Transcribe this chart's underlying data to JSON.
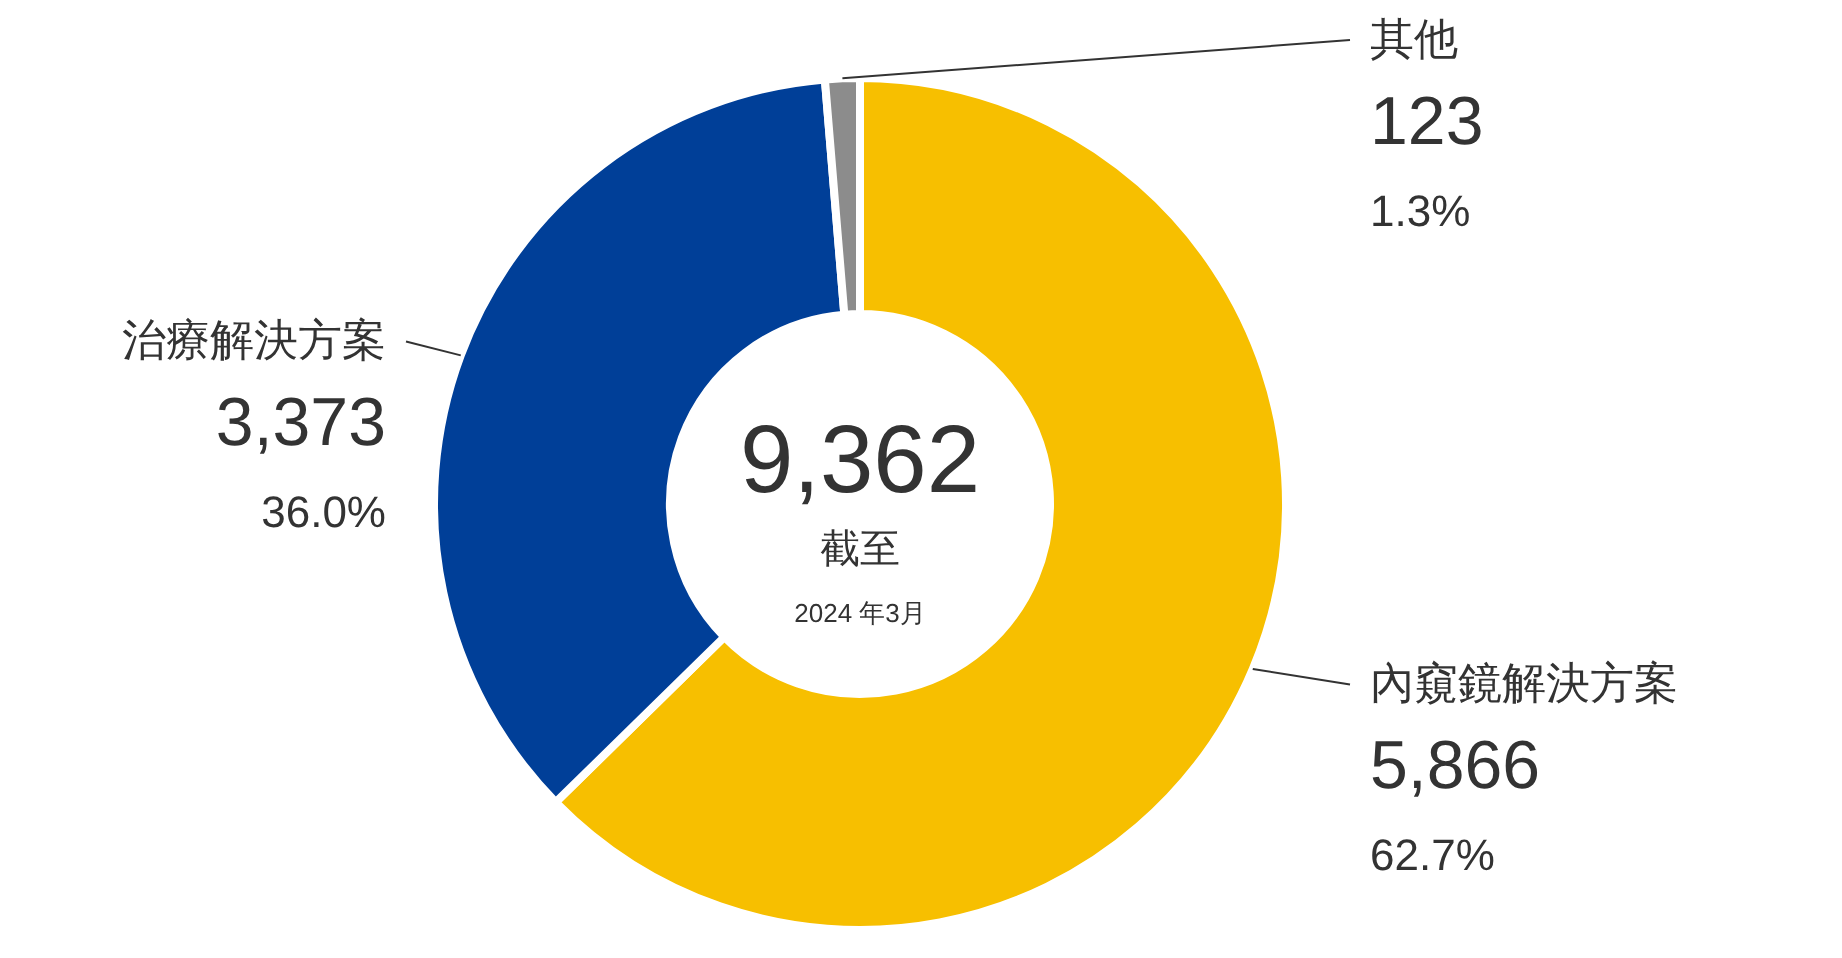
{
  "chart_data": {
    "type": "donut",
    "title": "9,362",
    "subtitle": "截至",
    "categories": [
      "內窺鏡解決方案",
      "治療解決方案",
      "其他"
    ],
    "values": [
      5866,
      3373,
      123
    ],
    "colors": [
      "#f7bf00",
      "#003f98",
      "#8c8c8c"
    ],
    "value_labels": [
      "5,866",
      "3,373",
      "123"
    ],
    "annotations": [
      "2024 年3月",
      {
        "text": "62.7%",
        "x": "內窺鏡解決方案"
      },
      {
        "text": "36.0%",
        "x": "治療解決方案"
      },
      {
        "text": "1.3%",
        "x": "其他"
      }
    ]
  }
}
